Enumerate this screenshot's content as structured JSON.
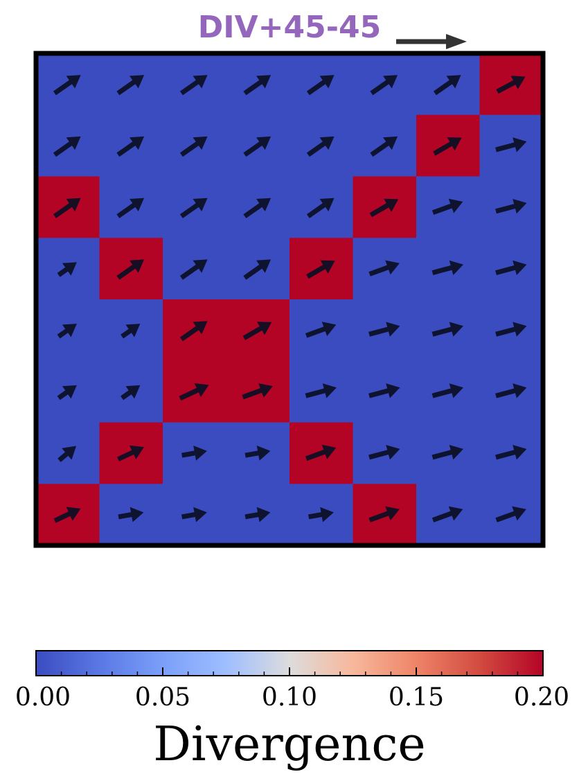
{
  "chart_data": {
    "type": "heatmap",
    "title": "DIV+45-45",
    "colorbar": {
      "label": "Divergence",
      "min": 0.0,
      "max": 0.2,
      "ticks": [
        "0.00",
        "0.05",
        "0.10",
        "0.15",
        "0.20"
      ],
      "tick_values": [
        0.0,
        0.05,
        0.1,
        0.15,
        0.2
      ],
      "colormap": "coolwarm"
    },
    "grid": {
      "rows": 8,
      "cols": 8
    },
    "divergence": [
      [
        0,
        0,
        0,
        0,
        0,
        0,
        0,
        0.2
      ],
      [
        0,
        0,
        0,
        0,
        0,
        0,
        0.2,
        0
      ],
      [
        0.2,
        0,
        0,
        0,
        0,
        0.2,
        0,
        0
      ],
      [
        0,
        0.2,
        0,
        0,
        0.2,
        0,
        0,
        0
      ],
      [
        0,
        0,
        0.2,
        0.2,
        0,
        0,
        0,
        0
      ],
      [
        0,
        0,
        0.2,
        0.2,
        0,
        0,
        0,
        0
      ],
      [
        0,
        0.2,
        0,
        0,
        0.2,
        0,
        0,
        0
      ],
      [
        0.2,
        0,
        0,
        0,
        0,
        0.2,
        0,
        0
      ]
    ],
    "vector_angles_deg": [
      [
        35,
        35,
        35,
        35,
        35,
        35,
        35,
        28
      ],
      [
        35,
        35,
        35,
        35,
        35,
        35,
        30,
        15
      ],
      [
        35,
        35,
        35,
        35,
        35,
        30,
        20,
        15
      ],
      [
        35,
        35,
        35,
        35,
        30,
        20,
        15,
        15
      ],
      [
        35,
        35,
        35,
        30,
        20,
        15,
        15,
        15
      ],
      [
        35,
        35,
        25,
        20,
        15,
        15,
        15,
        15
      ],
      [
        40,
        25,
        10,
        10,
        20,
        15,
        15,
        15
      ],
      [
        25,
        10,
        10,
        10,
        10,
        20,
        20,
        20
      ]
    ],
    "vector_lengths": [
      [
        1.0,
        1.0,
        1.0,
        1.0,
        1.0,
        1.0,
        1.0,
        1.0
      ],
      [
        1.0,
        1.0,
        1.0,
        1.0,
        1.0,
        1.0,
        1.0,
        1.0
      ],
      [
        1.0,
        1.0,
        1.0,
        1.0,
        1.0,
        1.0,
        1.0,
        1.0
      ],
      [
        0.7,
        1.0,
        1.0,
        1.0,
        1.0,
        1.0,
        1.0,
        1.0
      ],
      [
        0.7,
        0.7,
        1.0,
        1.0,
        1.0,
        1.0,
        1.0,
        1.0
      ],
      [
        0.7,
        0.7,
        1.0,
        1.0,
        1.0,
        1.0,
        1.0,
        1.0
      ],
      [
        0.7,
        0.9,
        0.8,
        0.8,
        1.0,
        1.0,
        1.0,
        1.0
      ],
      [
        0.9,
        0.8,
        0.8,
        0.8,
        0.8,
        1.0,
        1.0,
        1.0
      ]
    ],
    "colors": {
      "low": "#3b4cc0",
      "high": "#b40426",
      "arrow": "#0b0f24",
      "title": "#9467bd",
      "border": "#000000"
    }
  }
}
